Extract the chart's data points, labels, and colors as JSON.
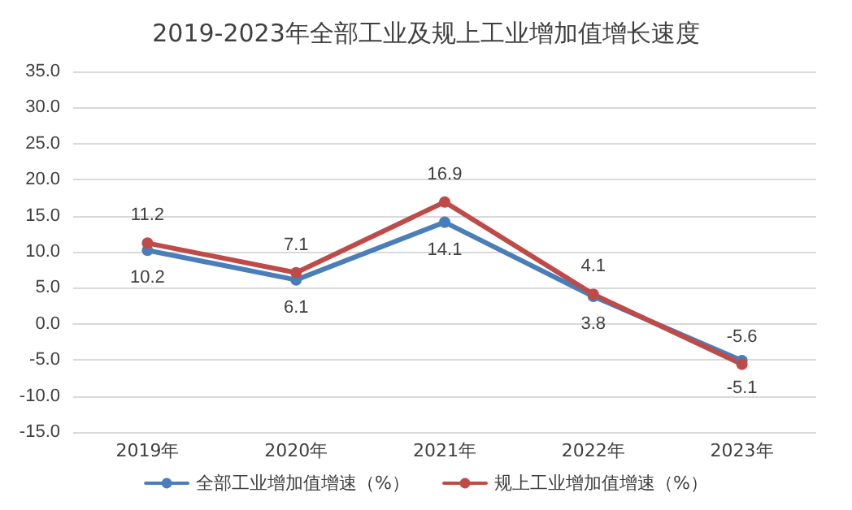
{
  "chart_data": {
    "type": "line",
    "title": "2019-2023年全部工业及规上工业增加值增长速度",
    "categories": [
      "2019年",
      "2020年",
      "2021年",
      "2022年",
      "2023年"
    ],
    "series": [
      {
        "name": "全部工业增加值增速（%）",
        "color": "#4a7ebb",
        "values": [
          10.2,
          6.1,
          14.1,
          3.8,
          -5.1
        ]
      },
      {
        "name": "规上工业增加值增速（%）",
        "color": "#be4b48",
        "values": [
          11.2,
          7.1,
          16.9,
          4.1,
          -5.6
        ]
      }
    ],
    "ylim": [
      -15,
      35
    ],
    "yticks": [
      "-15.0",
      "-10.0",
      "-5.0",
      "0.0",
      "5.0",
      "10.0",
      "15.0",
      "20.0",
      "25.0",
      "30.0",
      "35.0"
    ],
    "grid": "y",
    "legend": "bottom",
    "marker": "circle",
    "line_style": "solid",
    "data_labels": true
  }
}
